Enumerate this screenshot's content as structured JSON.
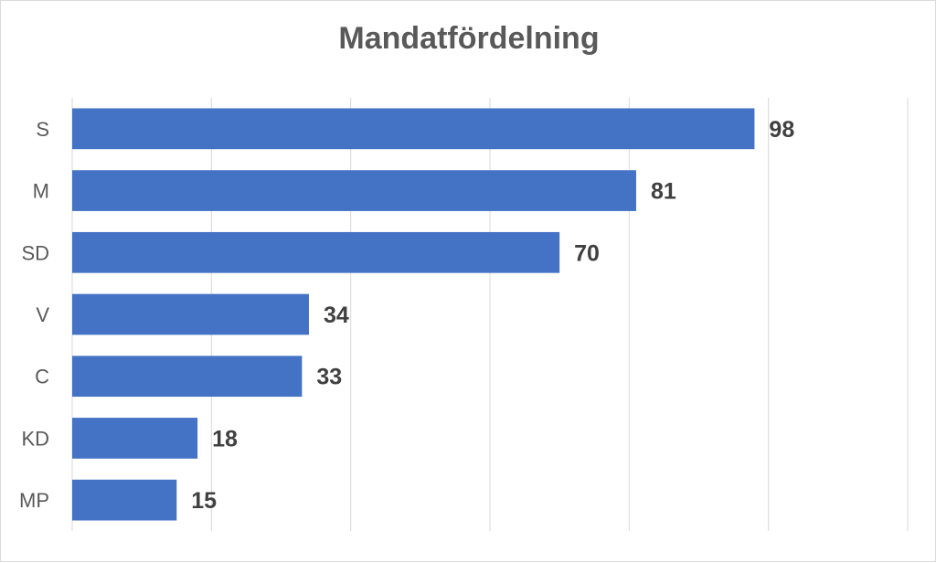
{
  "chart_data": {
    "type": "bar",
    "orientation": "horizontal",
    "title": "Mandatfördelning",
    "categories": [
      "S",
      "M",
      "SD",
      "V",
      "C",
      "KD",
      "MP"
    ],
    "values": [
      98,
      81,
      70,
      34,
      33,
      18,
      15
    ],
    "xlim": [
      0,
      120
    ],
    "grid": true,
    "legend": "none",
    "bar_color": "#4472C4"
  }
}
